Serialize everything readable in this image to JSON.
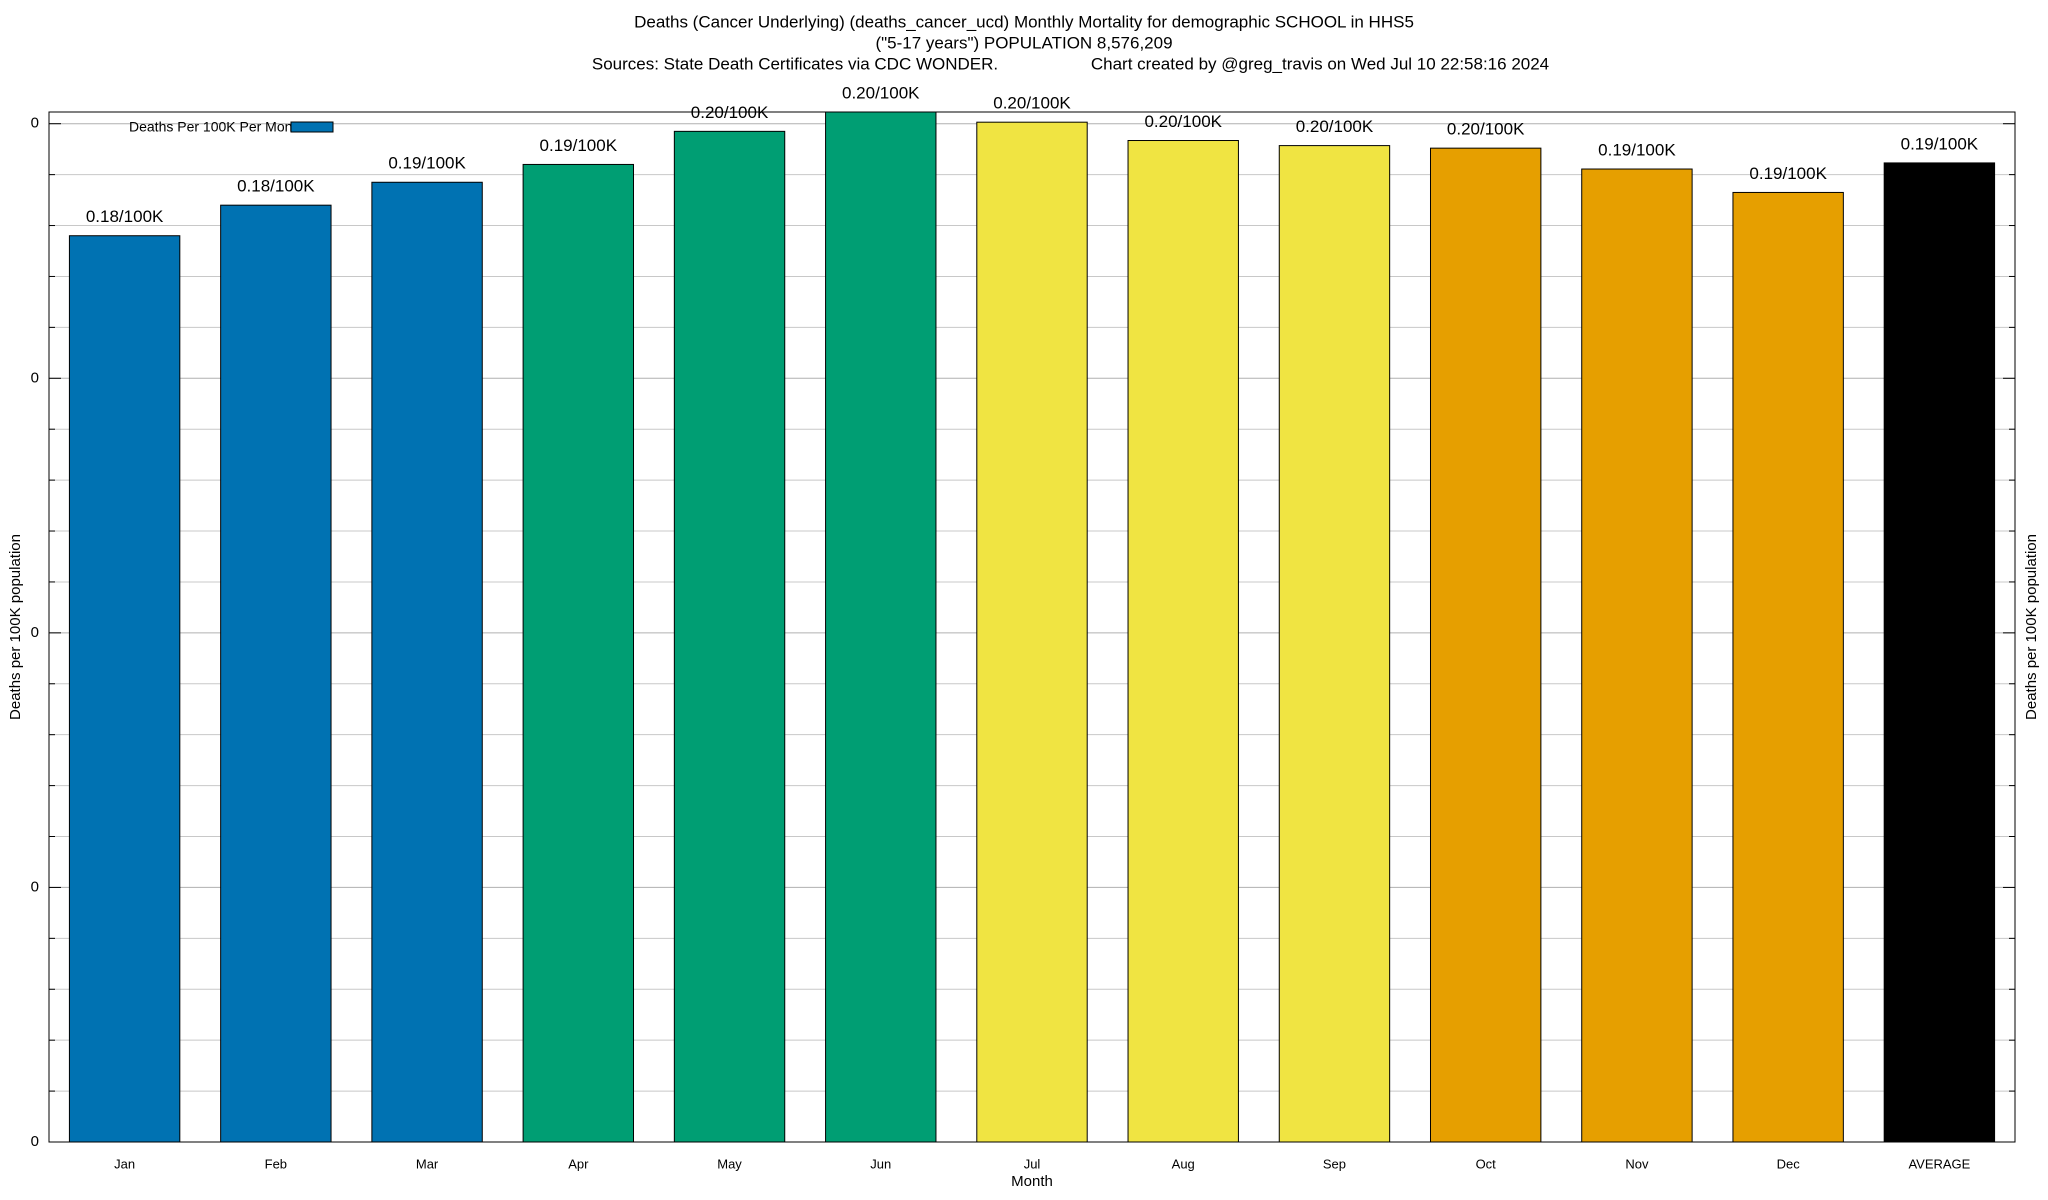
{
  "chart_data": {
    "type": "bar",
    "title": "Deaths (Cancer Underlying) (deaths_cancer_ucd) Monthly Mortality for demographic SCHOOL in HHS5",
    "subtitle": "(\"5-17 years\") POPULATION 8,576,209",
    "sources": "Sources: State Death Certificates via CDC WONDER.",
    "credit": "Chart created by @greg_travis on Wed Jul 10 22:58:16 2024",
    "xlabel": "Month",
    "ylabel": "Deaths per 100K population",
    "y2label": "Deaths per 100K population",
    "categories": [
      "Jan",
      "Feb",
      "Mar",
      "Apr",
      "May",
      "Jun",
      "Jul",
      "Aug",
      "Sep",
      "Oct",
      "Nov",
      "Dec",
      "AVERAGE"
    ],
    "series": [
      {
        "name": "Deaths Per 100K Per Month",
        "color": "#0072b2",
        "colors": [
          "#0072b2",
          "#0072b2",
          "#0072b2",
          "#009e73",
          "#009e73",
          "#009e73",
          "#f0e442",
          "#f0e442",
          "#f0e442",
          "#e69f00",
          "#e69f00",
          "#e69f00",
          "#000000"
        ],
        "values": [
          0.178,
          0.184,
          0.1885,
          0.192,
          0.1985,
          0.2023,
          0.2003,
          0.1967,
          0.1957,
          0.1952,
          0.1911,
          0.1865,
          0.1923
        ],
        "value_labels": [
          "0.18/100K",
          "0.18/100K",
          "0.19/100K",
          "0.19/100K",
          "0.20/100K",
          "0.20/100K",
          "0.20/100K",
          "0.20/100K",
          "0.20/100K",
          "0.20/100K",
          "0.19/100K",
          "0.19/100K",
          "0.19/100K"
        ]
      }
    ],
    "ylim": [
      0,
      0.2023
    ],
    "yticks": [
      {
        "value": 0,
        "label": "0"
      },
      {
        "value": 0.05,
        "label": "0"
      },
      {
        "value": 0.1,
        "label": "0"
      },
      {
        "value": 0.15,
        "label": "0"
      },
      {
        "value": 0.2,
        "label": "0"
      }
    ],
    "yminorticks": [
      0.01,
      0.02,
      0.03,
      0.04,
      0.06,
      0.07,
      0.08,
      0.09,
      0.11,
      0.12,
      0.13,
      0.14,
      0.16,
      0.17,
      0.18,
      0.19
    ],
    "grid": true,
    "legend": "upper left"
  }
}
